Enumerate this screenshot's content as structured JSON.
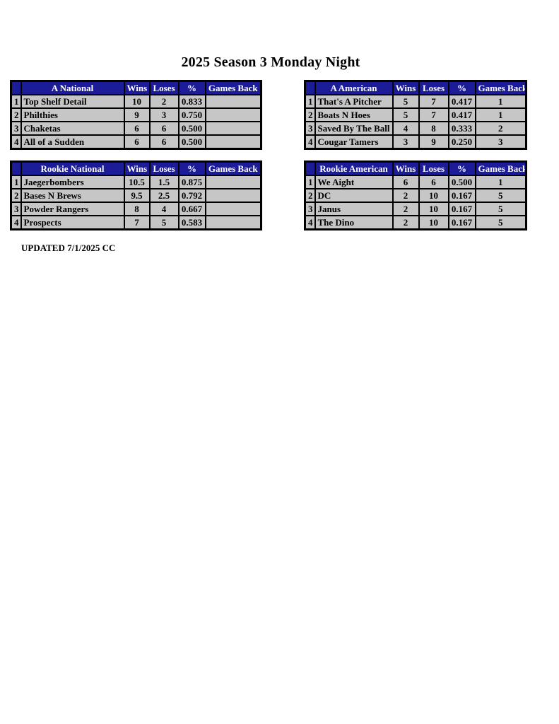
{
  "page": {
    "title": "2025 Season 3 Monday Night",
    "updated_note": "UPDATED 7/1/2025 CC"
  },
  "column_headers": [
    "Wins",
    "Loses",
    "%",
    "Games Back"
  ],
  "tables": [
    {
      "name": "A National",
      "rows": [
        {
          "rank": "1",
          "team": "Top Shelf Detail",
          "wins": "10",
          "loses": "2",
          "pct": "0.833",
          "games_back": ""
        },
        {
          "rank": "2",
          "team": "Philthies",
          "wins": "9",
          "loses": "3",
          "pct": "0.750",
          "games_back": ""
        },
        {
          "rank": "3",
          "team": "Chaketas",
          "wins": "6",
          "loses": "6",
          "pct": "0.500",
          "games_back": ""
        },
        {
          "rank": "4",
          "team": "All of a Sudden",
          "wins": "6",
          "loses": "6",
          "pct": "0.500",
          "games_back": ""
        }
      ]
    },
    {
      "name": "A American",
      "rows": [
        {
          "rank": "1",
          "team": "That's A Pitcher",
          "wins": "5",
          "loses": "7",
          "pct": "0.417",
          "games_back": "1"
        },
        {
          "rank": "2",
          "team": "Boats N Hoes",
          "wins": "5",
          "loses": "7",
          "pct": "0.417",
          "games_back": "1"
        },
        {
          "rank": "3",
          "team": "Saved By The Ball",
          "wins": "4",
          "loses": "8",
          "pct": "0.333",
          "games_back": "2"
        },
        {
          "rank": "4",
          "team": "Cougar Tamers",
          "wins": "3",
          "loses": "9",
          "pct": "0.250",
          "games_back": "3"
        }
      ]
    },
    {
      "name": "Rookie National",
      "rows": [
        {
          "rank": "1",
          "team": "Jaegerbombers",
          "wins": "10.5",
          "loses": "1.5",
          "pct": "0.875",
          "games_back": ""
        },
        {
          "rank": "2",
          "team": "Bases N Brews",
          "wins": "9.5",
          "loses": "2.5",
          "pct": "0.792",
          "games_back": ""
        },
        {
          "rank": "3",
          "team": "Powder Rangers",
          "wins": "8",
          "loses": "4",
          "pct": "0.667",
          "games_back": ""
        },
        {
          "rank": "4",
          "team": "Prospects",
          "wins": "7",
          "loses": "5",
          "pct": "0.583",
          "games_back": ""
        }
      ]
    },
    {
      "name": "Rookie American",
      "rows": [
        {
          "rank": "1",
          "team": "We Aight",
          "wins": "6",
          "loses": "6",
          "pct": "0.500",
          "games_back": "1"
        },
        {
          "rank": "2",
          "team": "DC",
          "wins": "2",
          "loses": "10",
          "pct": "0.167",
          "games_back": "5"
        },
        {
          "rank": "3",
          "team": "Janus",
          "wins": "2",
          "loses": "10",
          "pct": "0.167",
          "games_back": "5"
        },
        {
          "rank": "4",
          "team": "The Dino",
          "wins": "2",
          "loses": "10",
          "pct": "0.167",
          "games_back": "5"
        }
      ]
    }
  ],
  "colors": {
    "header_bg": "#1c1c99",
    "header_text": "#ffffff",
    "row_bg": "#c6c6c6",
    "border": "#000000"
  }
}
